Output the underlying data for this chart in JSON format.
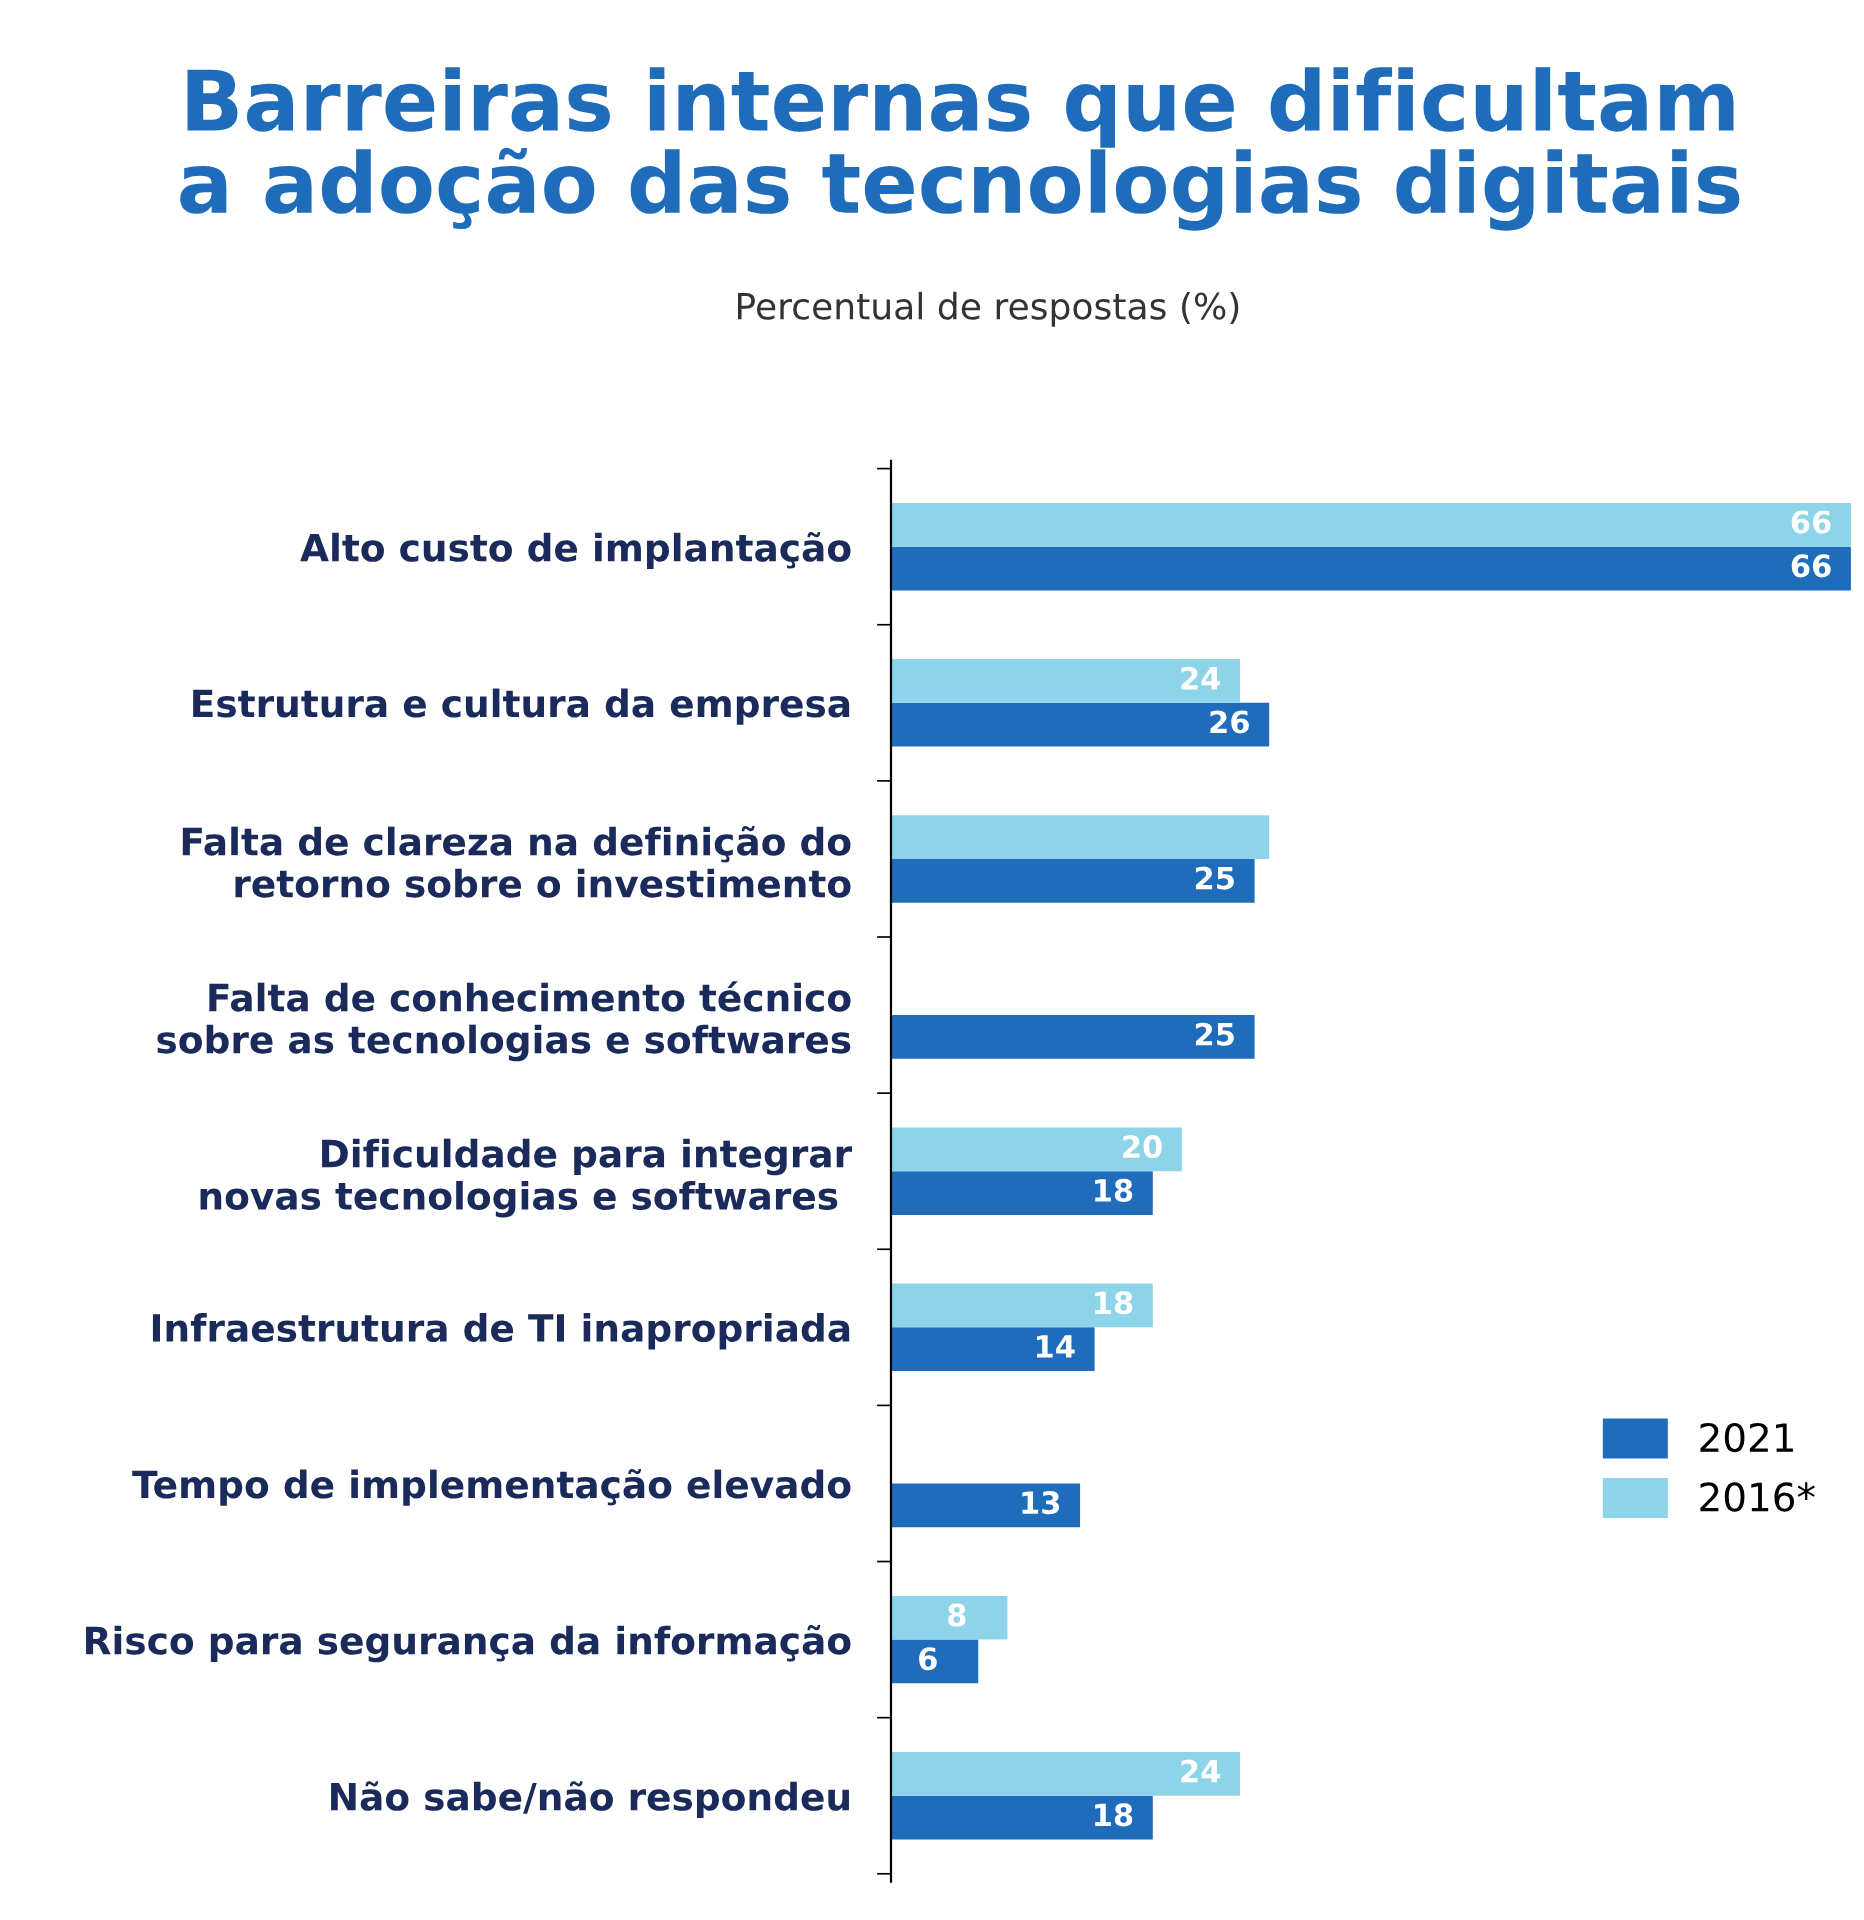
{
  "chart_data": {
    "type": "bar",
    "orientation": "horizontal",
    "title": "Barreiras internas que dificultam\na adoção das tecnologias digitais",
    "subtitle": "Percentual de respostas (%)",
    "categories": [
      "Alto custo de implantação",
      "Estrutura e cultura da empresa",
      "Falta de clareza na definição do\nretorno sobre o investimento",
      "Falta de conhecimento técnico\nsobre as tecnologias e softwares",
      "Dificuldade para integrar\nnovas tecnologias e softwares ",
      "Infraestrutura de TI inapropriada",
      "Tempo de implementação elevado",
      "Risco para segurança da informação",
      "Não sabe/não respondeu"
    ],
    "xlim": [
      0,
      66
    ],
    "series": [
      {
        "name": "2021",
        "color": "#1f6cba",
        "values": [
          66,
          26,
          25,
          25,
          18,
          14,
          13,
          6,
          18
        ],
        "value_labels": [
          "66",
          "26",
          "25",
          "25",
          "18",
          "14",
          "13",
          "6",
          "18"
        ]
      },
      {
        "name": "2016*",
        "color": "#8ed4e8",
        "values": [
          66,
          24,
          26,
          null,
          20,
          18,
          null,
          8,
          24
        ],
        "value_labels": [
          "66",
          "24",
          null,
          null,
          "20",
          "18",
          null,
          "8",
          "24"
        ]
      }
    ],
    "legend": "right",
    "grid": false,
    "tick_labels": "y"
  }
}
